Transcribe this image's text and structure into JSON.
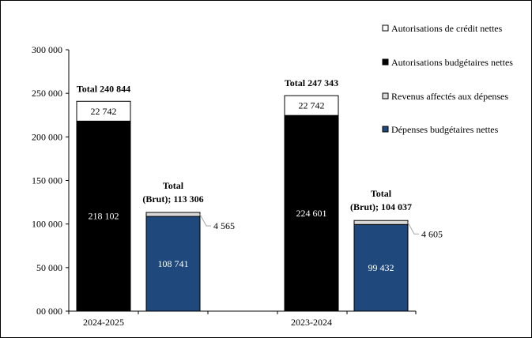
{
  "chart_data": {
    "type": "bar",
    "stacked": true,
    "ylim": [
      0,
      300000
    ],
    "yticks": [
      0,
      50000,
      100000,
      150000,
      200000,
      250000,
      300000
    ],
    "ytick_labels": [
      "00 000",
      "50 000",
      "100 000",
      "150 000",
      "200 000",
      "250 000",
      "300 000"
    ],
    "categories": [
      "2024-2025",
      "2023-2024"
    ],
    "colors": {
      "credit": "#ffffff",
      "budget": "#000000",
      "revenue": "#d9d9d9",
      "spending": "#1f497d"
    },
    "legend": {
      "placement": "top-right",
      "entries": [
        {
          "key": "credit",
          "label": "Autorisations de crédit nettes"
        },
        {
          "key": "budget",
          "label": "Autorisations budgétaires nettes"
        },
        {
          "key": "revenue",
          "label": "Revenus affectés aux dépenses"
        },
        {
          "key": "spending",
          "label": "Dépenses budgétaires nettes"
        }
      ]
    },
    "groups": [
      {
        "category": "2024-2025",
        "authorities": {
          "budget": 218102,
          "credit": 22742,
          "budget_label": "218  102",
          "credit_label": "22  742",
          "total_label": "Total  240 844"
        },
        "spending": {
          "spending": 108741,
          "revenue": 4565,
          "spending_label": "108  741",
          "revenue_label": "4  565",
          "total_label_1": "Total",
          "total_label_2": "(Brut);  113 306"
        }
      },
      {
        "category": "2023-2024",
        "authorities": {
          "budget": 224601,
          "credit": 22742,
          "budget_label": "224  601",
          "credit_label": "22  742",
          "total_label": "Total  247 343"
        },
        "spending": {
          "spending": 99432,
          "revenue": 4605,
          "spending_label": "99  432",
          "revenue_label": "4  605",
          "total_label_1": "Total",
          "total_label_2": "(Brut);  104 037"
        }
      }
    ],
    "grid": false
  }
}
